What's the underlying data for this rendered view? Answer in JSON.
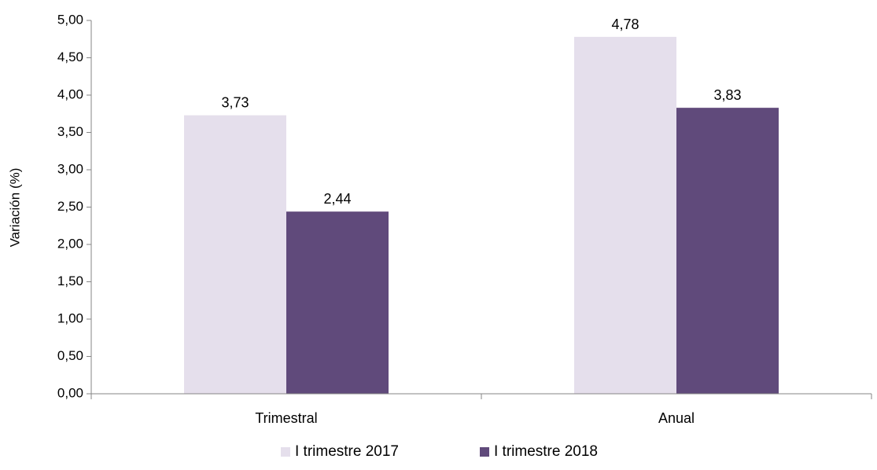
{
  "chart_data": {
    "type": "bar",
    "title": "",
    "xlabel": "",
    "ylabel": "Variación (%)",
    "categories": [
      "Trimestral",
      "Anual"
    ],
    "series": [
      {
        "name": "I trimestre 2017",
        "values": [
          3.73,
          4.78
        ],
        "labels": [
          "3,73",
          "4,78"
        ],
        "color": "#e5dfec"
      },
      {
        "name": "I trimestre 2018",
        "values": [
          2.44,
          3.83
        ],
        "labels": [
          "2,44",
          "3,83"
        ],
        "color": "#604a7b"
      }
    ],
    "ylim": [
      0,
      5
    ],
    "yticks": [
      0,
      0.5,
      1,
      1.5,
      2,
      2.5,
      3,
      3.5,
      4,
      4.5,
      5
    ],
    "ytick_labels": [
      "0,00",
      "0,50",
      "1,00",
      "1,50",
      "2,00",
      "2,50",
      "3,00",
      "3,50",
      "4,00",
      "4,50",
      "5,00"
    ],
    "grid": false,
    "legend_position": "bottom",
    "axis_color": "#868686"
  }
}
